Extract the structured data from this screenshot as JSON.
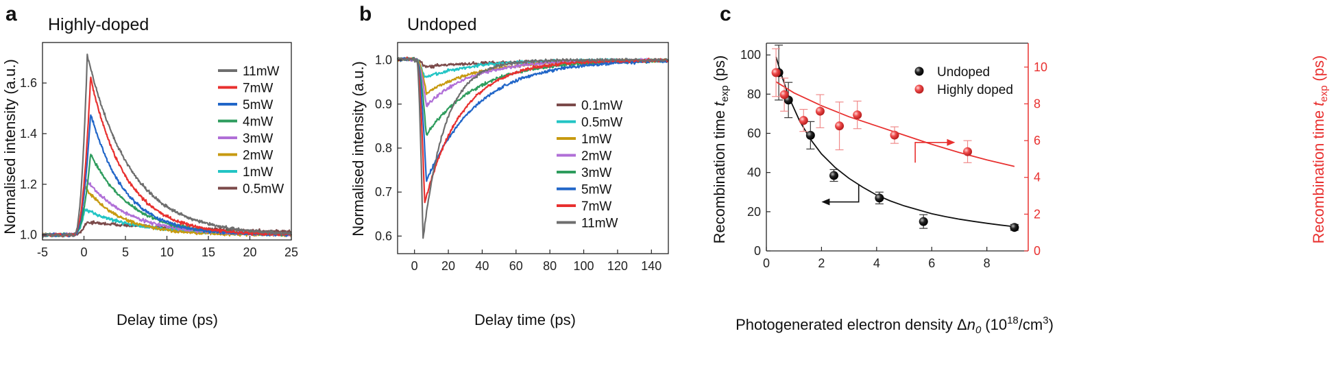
{
  "chart_data": [
    {
      "type": "line",
      "panel_label": "a",
      "title": "Highly-doped",
      "xlabel": "Delay time (ps)",
      "ylabel": "Normalised intensity (a.u.)",
      "xlim": [
        -5,
        25
      ],
      "ylim": [
        0.98,
        1.76
      ],
      "xticks": [
        -5,
        0,
        5,
        10,
        15,
        20,
        25
      ],
      "yticks": [
        1.0,
        1.2,
        1.4,
        1.6
      ],
      "legend_position": "right",
      "series": [
        {
          "name": "11mW",
          "color": "#6e6e6e",
          "peak": 1.71,
          "t_peak": 0.4,
          "decay": 5.2
        },
        {
          "name": "7mW",
          "color": "#e8302f",
          "peak": 1.62,
          "t_peak": 0.8,
          "decay": 4.3
        },
        {
          "name": "5mW",
          "color": "#2166c8",
          "peak": 1.48,
          "t_peak": 0.8,
          "decay": 4.1
        },
        {
          "name": "4mW",
          "color": "#2e9c5d",
          "peak": 1.32,
          "t_peak": 0.8,
          "decay": 4.8
        },
        {
          "name": "3mW",
          "color": "#b06fd7",
          "peak": 1.22,
          "t_peak": 0.2,
          "decay": 5.2
        },
        {
          "name": "2mW",
          "color": "#c79a10",
          "peak": 1.19,
          "t_peak": 0.1,
          "decay": 4.3
        },
        {
          "name": "1mW",
          "color": "#22c4c4",
          "peak": 1.1,
          "t_peak": 0.1,
          "decay": 6.5
        },
        {
          "name": "0.5mW",
          "color": "#7b4a4a",
          "peak": 1.05,
          "t_peak": 0.3,
          "decay": 18
        }
      ]
    },
    {
      "type": "line",
      "panel_label": "b",
      "title": "Undoped",
      "xlabel": "Delay time (ps)",
      "ylabel": "Normalised intensity (a.u.)",
      "xlim": [
        -10,
        150
      ],
      "ylim": [
        0.56,
        1.04
      ],
      "xticks": [
        0,
        20,
        40,
        60,
        80,
        100,
        120,
        140
      ],
      "yticks": [
        0.6,
        0.7,
        0.8,
        0.9,
        1.0
      ],
      "legend_position": "right",
      "series": [
        {
          "name": "0.1mW",
          "color": "#7b4a4a",
          "min": 0.985,
          "t_min": 6,
          "decay": 45
        },
        {
          "name": "0.5mW",
          "color": "#22c4c4",
          "min": 0.96,
          "t_min": 6,
          "decay": 28
        },
        {
          "name": "1mW",
          "color": "#c79a10",
          "min": 0.925,
          "t_min": 7,
          "decay": 30
        },
        {
          "name": "2mW",
          "color": "#b06fd7",
          "min": 0.895,
          "t_min": 7,
          "decay": 26
        },
        {
          "name": "3mW",
          "color": "#2e9c5d",
          "min": 0.83,
          "t_min": 7,
          "decay": 30
        },
        {
          "name": "5mW",
          "color": "#2166c8",
          "min": 0.725,
          "t_min": 7,
          "decay": 30
        },
        {
          "name": "7mW",
          "color": "#e8302f",
          "min": 0.675,
          "t_min": 6,
          "decay": 22
        },
        {
          "name": "11mW",
          "color": "#6e6e6e",
          "min": 0.592,
          "t_min": 5,
          "decay": 13
        }
      ]
    },
    {
      "type": "scatter",
      "panel_label": "c",
      "xlabel_prefix": "Photogenerated electron density Δ",
      "xlabel_var": "n",
      "xlabel_sub": "0",
      "xlabel_unit": "(10",
      "xlabel_exp": "18",
      "xlabel_unit2": "/cm",
      "xlabel_exp2": "3",
      "xlabel_close": ")",
      "ylabel_left_prefix": "Recombination time",
      "ylabel_left_var": "t",
      "ylabel_left_sub": "exp",
      "ylabel_left_unit": "(ps)",
      "ylabel_right_prefix": "Recombination time",
      "ylabel_right_var": "t",
      "ylabel_right_sub": "exp",
      "ylabel_right_unit": "(ps)",
      "xlim": [
        0,
        9.5
      ],
      "ylim_left": [
        0,
        106
      ],
      "ylim_right": [
        0,
        11.3
      ],
      "xticks": [
        0,
        2,
        4,
        6,
        8
      ],
      "yticks_left": [
        0,
        20,
        40,
        60,
        80,
        100
      ],
      "yticks_right": [
        0,
        2,
        4,
        6,
        8,
        10
      ],
      "legend_position": "top-right",
      "series": [
        {
          "name": "Undoped",
          "color": "#111111",
          "axis": "left",
          "points": [
            {
              "x": 0.45,
              "y": 91,
              "err": 14
            },
            {
              "x": 0.8,
              "y": 77,
              "err": 9
            },
            {
              "x": 1.6,
              "y": 59,
              "err": 7
            },
            {
              "x": 2.45,
              "y": 38.5,
              "err": 3
            },
            {
              "x": 4.1,
              "y": 27,
              "err": 3
            },
            {
              "x": 5.7,
              "y": 15,
              "err": 3.5
            },
            {
              "x": 9.0,
              "y": 12,
              "err": 1.5
            }
          ],
          "fit": [
            [
              0.35,
              99
            ],
            [
              0.5,
              92
            ],
            [
              0.8,
              79
            ],
            [
              1.2,
              66.5
            ],
            [
              1.6,
              57
            ],
            [
              2.0,
              49.5
            ],
            [
              2.5,
              42.5
            ],
            [
              3.0,
              37
            ],
            [
              3.5,
              32.5
            ],
            [
              4.0,
              28.5
            ],
            [
              4.5,
              25.5
            ],
            [
              5.0,
              23
            ],
            [
              5.5,
              21
            ],
            [
              6.0,
              19
            ],
            [
              6.5,
              17.5
            ],
            [
              7.0,
              16.2
            ],
            [
              7.5,
              15.1
            ],
            [
              8.0,
              14.1
            ],
            [
              8.5,
              13.2
            ],
            [
              9.0,
              12.4
            ]
          ]
        },
        {
          "name": "Highly doped",
          "color": "#e84848",
          "axis": "right",
          "points": [
            {
              "x": 0.35,
              "y": 9.7,
              "err": 1.3
            },
            {
              "x": 0.65,
              "y": 8.5,
              "err": 0.9
            },
            {
              "x": 1.35,
              "y": 7.1,
              "err": 0.6
            },
            {
              "x": 1.95,
              "y": 7.6,
              "err": 0.9
            },
            {
              "x": 2.65,
              "y": 6.8,
              "err": 1.3
            },
            {
              "x": 3.3,
              "y": 7.4,
              "err": 0.75
            },
            {
              "x": 4.65,
              "y": 6.3,
              "err": 0.45
            },
            {
              "x": 7.3,
              "y": 5.4,
              "err": 0.6
            }
          ],
          "fit": [
            [
              0.35,
              9.2
            ],
            [
              1.0,
              8.6
            ],
            [
              2.0,
              7.9
            ],
            [
              3.0,
              7.3
            ],
            [
              4.0,
              6.8
            ],
            [
              5.0,
              6.3
            ],
            [
              6.0,
              5.8
            ],
            [
              7.0,
              5.35
            ],
            [
              8.0,
              4.95
            ],
            [
              9.0,
              4.6
            ]
          ]
        }
      ]
    }
  ]
}
